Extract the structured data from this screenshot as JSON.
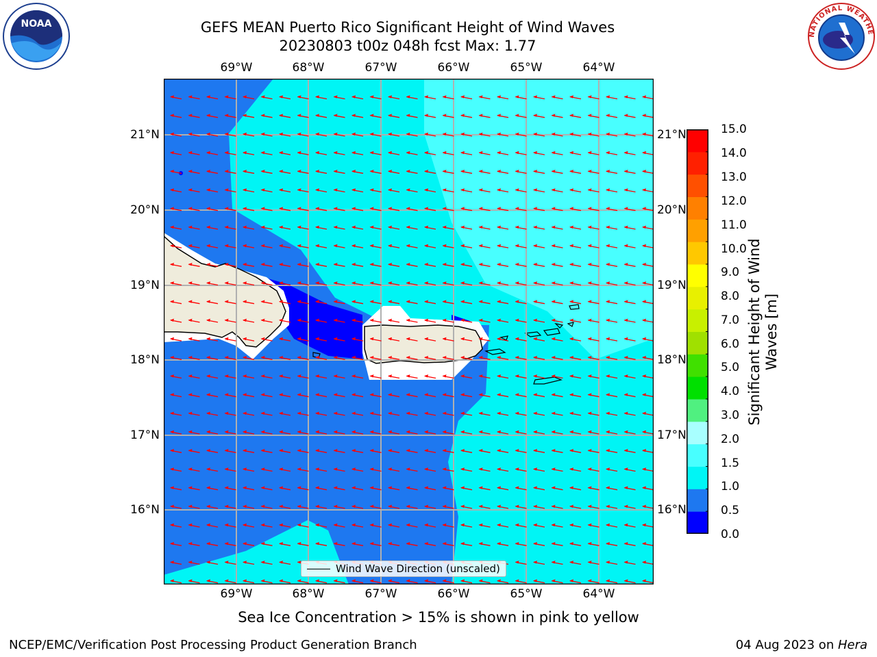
{
  "header": {
    "title_line1": "GEFS MEAN Puerto Rico Significant Height of Wind Waves",
    "title_line2": "20230803 t00z 048h fcst   Max: 1.77"
  },
  "logos": {
    "noaa_text": "NOAA",
    "nws_text": "NATIONAL WEATHER SERVICE"
  },
  "map": {
    "lon_labels": [
      "69°W",
      "68°W",
      "67°W",
      "66°W",
      "65°W",
      "64°W"
    ],
    "lat_labels": [
      "21°N",
      "20°N",
      "19°N",
      "18°N",
      "17°N",
      "16°N"
    ],
    "legend_label": "Wind Wave Direction (unscaled)",
    "arrow_color": "#ff0000",
    "land_color": "#efecdc",
    "grid_color": "#b0b0b0"
  },
  "colorbar": {
    "label": "Significant Height of Wind Waves [m]",
    "ticks": [
      "15.0",
      "14.0",
      "13.0",
      "12.0",
      "11.0",
      "10.0",
      "9.0",
      "8.0",
      "7.0",
      "6.0",
      "5.0",
      "4.0",
      "3.0",
      "2.0",
      "1.5",
      "1.0",
      "0.5",
      "0.0"
    ],
    "colors_bottom_to_top": [
      "#0000ff",
      "#1e78f0",
      "#00f5f5",
      "#48ffff",
      "#a8ffff",
      "#50f080",
      "#00e000",
      "#40e000",
      "#a0e000",
      "#c8f000",
      "#e8f000",
      "#ffff00",
      "#ffc800",
      "#ffa000",
      "#ff8000",
      "#ff5000",
      "#ff2000",
      "#ff0000"
    ]
  },
  "footer": {
    "sea_ice_note": "Sea Ice Concentration > 15% is shown in pink to yellow",
    "branch": "NCEP/EMC/Verification Post Processing Product Generation Branch",
    "date_prefix": "04 Aug 2023 on ",
    "machine": "Hera"
  }
}
